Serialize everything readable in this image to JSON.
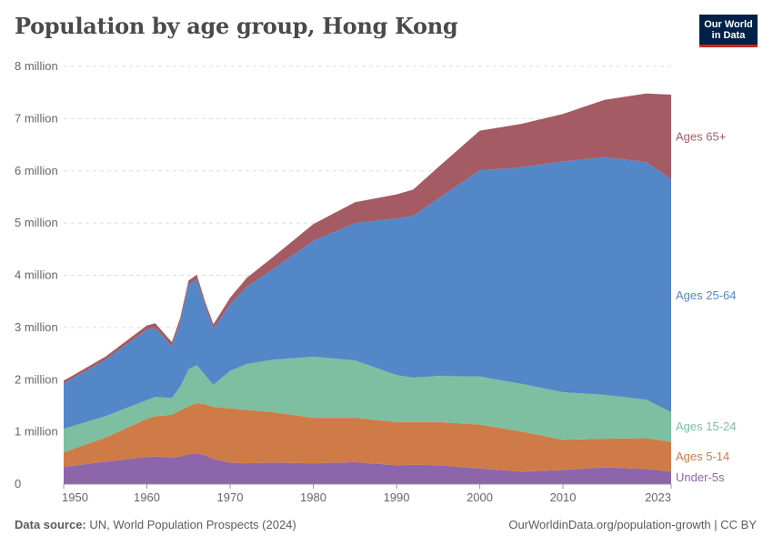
{
  "header": {
    "title": "Population by age group, Hong Kong",
    "logo_line1": "Our World",
    "logo_line2": "in Data"
  },
  "footer": {
    "source_label": "Data source:",
    "source_text": "UN, World Population Prospects (2024)",
    "url_text": "OurWorldinData.org/population-growth | CC BY"
  },
  "colors": {
    "under5": "#8c65ab",
    "age5_14": "#cf7b47",
    "age15_24": "#7dbfa0",
    "age25_64": "#5487c8",
    "age65": "#a45b63"
  },
  "chart_data": {
    "type": "area",
    "stacked": true,
    "title": "Population by age group, Hong Kong",
    "xlabel": "",
    "ylabel": "",
    "xlim": [
      1950,
      2023
    ],
    "ylim": [
      0,
      8000000
    ],
    "x": [
      1950,
      1955,
      1960,
      1961,
      1963,
      1964,
      1965,
      1966,
      1967,
      1968,
      1970,
      1972,
      1975,
      1980,
      1985,
      1990,
      1992,
      1995,
      2000,
      2005,
      2010,
      2015,
      2020,
      2023
    ],
    "y_ticks": [
      0,
      1000000,
      2000000,
      3000000,
      4000000,
      5000000,
      6000000,
      7000000,
      8000000
    ],
    "y_tick_labels": [
      "0",
      "1 million",
      "2 million",
      "3 million",
      "4 million",
      "5 million",
      "6 million",
      "7 million",
      "8 million"
    ],
    "x_ticks": [
      1950,
      1960,
      1970,
      1980,
      1990,
      2000,
      2010,
      2023
    ],
    "x_tick_labels": [
      "1950",
      "1960",
      "1970",
      "1980",
      "1990",
      "2000",
      "2010",
      "2023"
    ],
    "grid": true,
    "series": [
      {
        "name": "Under-5s",
        "key": "under5",
        "values": [
          330000,
          430000,
          520000,
          530000,
          510000,
          530000,
          570000,
          590000,
          550000,
          480000,
          410000,
          400000,
          410000,
          400000,
          420000,
          360000,
          370000,
          360000,
          300000,
          240000,
          270000,
          320000,
          290000,
          240000
        ]
      },
      {
        "name": "Ages 5-14",
        "key": "age5_14",
        "values": [
          280000,
          460000,
          730000,
          770000,
          820000,
          880000,
          920000,
          960000,
          980000,
          1000000,
          1040000,
          1020000,
          970000,
          870000,
          850000,
          830000,
          820000,
          830000,
          840000,
          770000,
          580000,
          550000,
          590000,
          570000
        ]
      },
      {
        "name": "Ages 15-24",
        "key": "age15_24",
        "values": [
          450000,
          410000,
          360000,
          370000,
          320000,
          450000,
          710000,
          730000,
          560000,
          420000,
          720000,
          880000,
          1000000,
          1170000,
          1100000,
          900000,
          850000,
          880000,
          920000,
          910000,
          910000,
          840000,
          740000,
          570000
        ]
      },
      {
        "name": "Ages 25-64",
        "key": "age25_64",
        "values": [
          870000,
          1080000,
          1350000,
          1320000,
          990000,
          1240000,
          1620000,
          1640000,
          1320000,
          1080000,
          1270000,
          1480000,
          1720000,
          2220000,
          2630000,
          3000000,
          3100000,
          3400000,
          3950000,
          4150000,
          4420000,
          4550000,
          4550000,
          4460000
        ]
      },
      {
        "name": "Ages 65+",
        "key": "age65",
        "values": [
          50000,
          60000,
          80000,
          90000,
          80000,
          80000,
          80000,
          90000,
          80000,
          80000,
          130000,
          170000,
          230000,
          320000,
          400000,
          460000,
          500000,
          600000,
          760000,
          830000,
          910000,
          1100000,
          1310000,
          1620000
        ]
      }
    ],
    "legend_placement": "right-inline"
  }
}
